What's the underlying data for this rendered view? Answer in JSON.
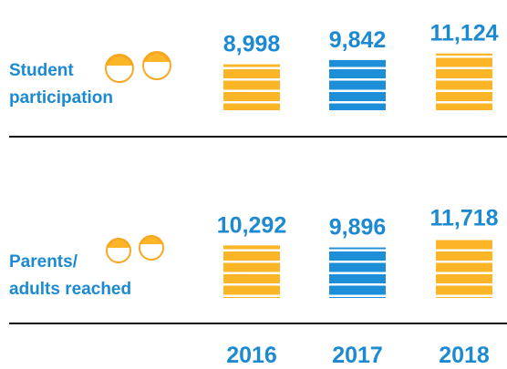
{
  "chart_data": {
    "type": "pictograph",
    "categories": [
      "2016",
      "2017",
      "2018"
    ],
    "colors": [
      "#fbb526",
      "#1c8fd8",
      "#fbb526"
    ],
    "series": [
      {
        "name": "Student\nparticipation",
        "values": [
          8998,
          9842,
          11124
        ],
        "value_labels": [
          "8,998",
          "9,842",
          "11,124"
        ]
      },
      {
        "name": "Parents/\nadults reached",
        "values": [
          10292,
          9896,
          11718
        ],
        "value_labels": [
          "10,292",
          "9,896",
          "11,718"
        ]
      }
    ]
  }
}
